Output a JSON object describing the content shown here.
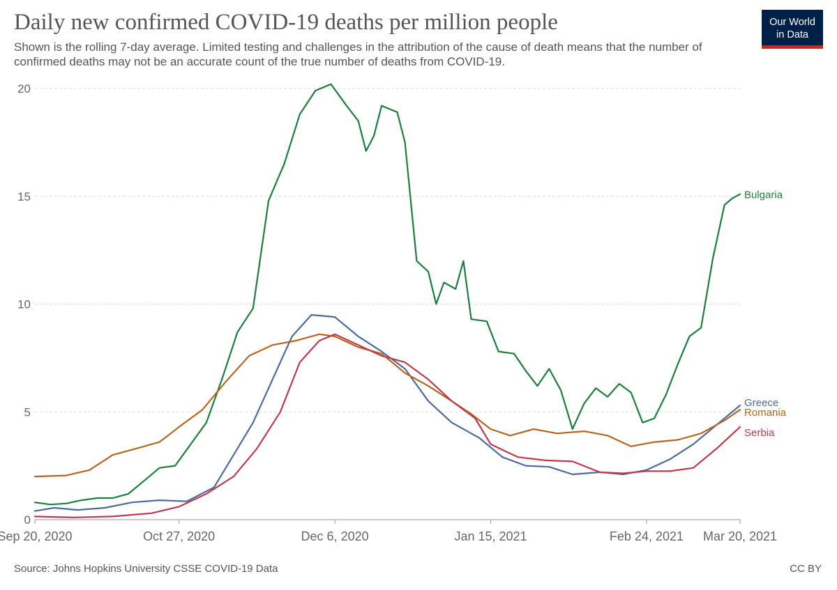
{
  "header": {
    "title": "Daily new confirmed COVID-19 deaths per million people",
    "subtitle": "Shown is the rolling 7-day average. Limited testing and challenges in the attribution of the cause of death means that the number of confirmed deaths may not be an accurate count of the true number of deaths from COVID-19."
  },
  "logo": {
    "line1": "Our World",
    "line2": "in Data"
  },
  "footer": {
    "source": "Source: Johns Hopkins University CSSE COVID-19 Data",
    "license": "CC BY"
  },
  "chart_data": {
    "type": "line",
    "title": "Daily new confirmed COVID-19 deaths per million people",
    "x_tick_labels": [
      "Sep 20, 2020",
      "Oct 27, 2020",
      "Dec 6, 2020",
      "Jan 15, 2021",
      "Feb 24, 2021",
      "Mar 20, 2021"
    ],
    "x_tick_dates": [
      "2020-09-20",
      "2020-10-27",
      "2020-12-06",
      "2021-01-15",
      "2021-02-24",
      "2021-03-20"
    ],
    "y_ticks": [
      0,
      5,
      10,
      15,
      20
    ],
    "ylim": [
      0,
      20
    ],
    "xlim": [
      "2020-09-20",
      "2021-03-20"
    ],
    "grid": "horizontal dashed",
    "legend": "line-end labels",
    "series": [
      {
        "name": "Bulgaria",
        "color": "#1b7e3a",
        "points": [
          [
            "2020-09-20",
            0.8
          ],
          [
            "2020-09-24",
            0.7
          ],
          [
            "2020-09-28",
            0.75
          ],
          [
            "2020-10-02",
            0.9
          ],
          [
            "2020-10-06",
            1.0
          ],
          [
            "2020-10-10",
            1.0
          ],
          [
            "2020-10-14",
            1.2
          ],
          [
            "2020-10-18",
            1.8
          ],
          [
            "2020-10-22",
            2.4
          ],
          [
            "2020-10-26",
            2.5
          ],
          [
            "2020-10-30",
            3.5
          ],
          [
            "2020-11-03",
            4.5
          ],
          [
            "2020-11-07",
            6.5
          ],
          [
            "2020-11-11",
            8.7
          ],
          [
            "2020-11-15",
            9.8
          ],
          [
            "2020-11-19",
            14.8
          ],
          [
            "2020-11-23",
            16.5
          ],
          [
            "2020-11-27",
            18.8
          ],
          [
            "2020-12-01",
            19.9
          ],
          [
            "2020-12-05",
            20.2
          ],
          [
            "2020-12-09",
            19.2
          ],
          [
            "2020-12-12",
            18.5
          ],
          [
            "2020-12-14",
            17.1
          ],
          [
            "2020-12-16",
            17.8
          ],
          [
            "2020-12-18",
            19.2
          ],
          [
            "2020-12-22",
            18.9
          ],
          [
            "2020-12-24",
            17.5
          ],
          [
            "2020-12-27",
            12.0
          ],
          [
            "2020-12-30",
            11.5
          ],
          [
            "2021-01-01",
            10.0
          ],
          [
            "2021-01-03",
            11.0
          ],
          [
            "2021-01-06",
            10.7
          ],
          [
            "2021-01-08",
            12.0
          ],
          [
            "2021-01-10",
            9.3
          ],
          [
            "2021-01-14",
            9.2
          ],
          [
            "2021-01-17",
            7.8
          ],
          [
            "2021-01-21",
            7.7
          ],
          [
            "2021-01-24",
            6.9
          ],
          [
            "2021-01-27",
            6.2
          ],
          [
            "2021-01-30",
            7.0
          ],
          [
            "2021-02-02",
            6.0
          ],
          [
            "2021-02-05",
            4.2
          ],
          [
            "2021-02-08",
            5.4
          ],
          [
            "2021-02-11",
            6.1
          ],
          [
            "2021-02-14",
            5.7
          ],
          [
            "2021-02-17",
            6.3
          ],
          [
            "2021-02-20",
            5.9
          ],
          [
            "2021-02-23",
            4.5
          ],
          [
            "2021-02-26",
            4.7
          ],
          [
            "2021-03-01",
            5.8
          ],
          [
            "2021-03-04",
            7.2
          ],
          [
            "2021-03-07",
            8.5
          ],
          [
            "2021-03-10",
            8.9
          ],
          [
            "2021-03-13",
            12.1
          ],
          [
            "2021-03-16",
            14.6
          ],
          [
            "2021-03-18",
            14.9
          ],
          [
            "2021-03-20",
            15.1
          ]
        ]
      },
      {
        "name": "Greece",
        "color": "#4c6a9c",
        "points": [
          [
            "2020-09-20",
            0.4
          ],
          [
            "2020-09-25",
            0.55
          ],
          [
            "2020-10-01",
            0.45
          ],
          [
            "2020-10-08",
            0.55
          ],
          [
            "2020-10-15",
            0.8
          ],
          [
            "2020-10-22",
            0.9
          ],
          [
            "2020-10-29",
            0.85
          ],
          [
            "2020-11-05",
            1.5
          ],
          [
            "2020-11-10",
            3.0
          ],
          [
            "2020-11-15",
            4.5
          ],
          [
            "2020-11-20",
            6.5
          ],
          [
            "2020-11-25",
            8.5
          ],
          [
            "2020-11-30",
            9.5
          ],
          [
            "2020-12-06",
            9.4
          ],
          [
            "2020-12-12",
            8.5
          ],
          [
            "2020-12-18",
            7.8
          ],
          [
            "2020-12-24",
            7.0
          ],
          [
            "2020-12-30",
            5.5
          ],
          [
            "2021-01-05",
            4.5
          ],
          [
            "2021-01-12",
            3.8
          ],
          [
            "2021-01-18",
            2.9
          ],
          [
            "2021-01-24",
            2.5
          ],
          [
            "2021-01-30",
            2.45
          ],
          [
            "2021-02-05",
            2.1
          ],
          [
            "2021-02-12",
            2.2
          ],
          [
            "2021-02-18",
            2.1
          ],
          [
            "2021-02-24",
            2.3
          ],
          [
            "2021-03-02",
            2.8
          ],
          [
            "2021-03-08",
            3.5
          ],
          [
            "2021-03-14",
            4.4
          ],
          [
            "2021-03-20",
            5.3
          ]
        ]
      },
      {
        "name": "Romania",
        "color": "#b5651d",
        "points": [
          [
            "2020-09-20",
            2.0
          ],
          [
            "2020-09-28",
            2.05
          ],
          [
            "2020-10-04",
            2.3
          ],
          [
            "2020-10-10",
            3.0
          ],
          [
            "2020-10-16",
            3.3
          ],
          [
            "2020-10-22",
            3.6
          ],
          [
            "2020-10-27",
            4.3
          ],
          [
            "2020-11-02",
            5.1
          ],
          [
            "2020-11-08",
            6.4
          ],
          [
            "2020-11-14",
            7.6
          ],
          [
            "2020-11-20",
            8.1
          ],
          [
            "2020-11-26",
            8.3
          ],
          [
            "2020-12-02",
            8.6
          ],
          [
            "2020-12-06",
            8.5
          ],
          [
            "2020-12-12",
            8.0
          ],
          [
            "2020-12-18",
            7.7
          ],
          [
            "2020-12-24",
            6.8
          ],
          [
            "2020-12-30",
            6.2
          ],
          [
            "2021-01-05",
            5.5
          ],
          [
            "2021-01-10",
            4.9
          ],
          [
            "2021-01-15",
            4.2
          ],
          [
            "2021-01-20",
            3.9
          ],
          [
            "2021-01-26",
            4.2
          ],
          [
            "2021-02-01",
            4.0
          ],
          [
            "2021-02-08",
            4.1
          ],
          [
            "2021-02-14",
            3.9
          ],
          [
            "2021-02-20",
            3.4
          ],
          [
            "2021-02-26",
            3.6
          ],
          [
            "2021-03-04",
            3.7
          ],
          [
            "2021-03-10",
            4.0
          ],
          [
            "2021-03-16",
            4.6
          ],
          [
            "2021-03-20",
            5.1
          ]
        ]
      },
      {
        "name": "Serbia",
        "color": "#c0394b",
        "points": [
          [
            "2020-09-20",
            0.15
          ],
          [
            "2020-09-30",
            0.1
          ],
          [
            "2020-10-10",
            0.15
          ],
          [
            "2020-10-20",
            0.3
          ],
          [
            "2020-10-27",
            0.6
          ],
          [
            "2020-11-03",
            1.2
          ],
          [
            "2020-11-10",
            2.0
          ],
          [
            "2020-11-16",
            3.3
          ],
          [
            "2020-11-22",
            5.0
          ],
          [
            "2020-11-27",
            7.3
          ],
          [
            "2020-12-02",
            8.3
          ],
          [
            "2020-12-06",
            8.6
          ],
          [
            "2020-12-12",
            8.1
          ],
          [
            "2020-12-18",
            7.6
          ],
          [
            "2020-12-24",
            7.3
          ],
          [
            "2020-12-30",
            6.5
          ],
          [
            "2021-01-05",
            5.5
          ],
          [
            "2021-01-11",
            4.7
          ],
          [
            "2021-01-15",
            3.5
          ],
          [
            "2021-01-22",
            2.9
          ],
          [
            "2021-01-29",
            2.75
          ],
          [
            "2021-02-05",
            2.7
          ],
          [
            "2021-02-12",
            2.2
          ],
          [
            "2021-02-18",
            2.15
          ],
          [
            "2021-02-24",
            2.25
          ],
          [
            "2021-03-02",
            2.25
          ],
          [
            "2021-03-08",
            2.4
          ],
          [
            "2021-03-14",
            3.3
          ],
          [
            "2021-03-20",
            4.3
          ]
        ]
      }
    ]
  }
}
